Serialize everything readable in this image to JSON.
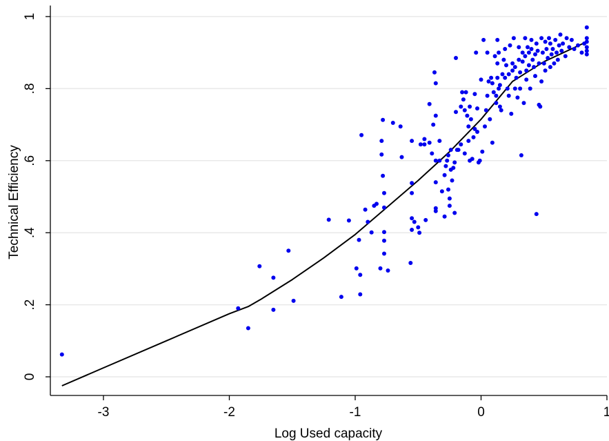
{
  "chart_data": {
    "type": "scatter",
    "title": "",
    "xlabel": "Log Used capacity",
    "ylabel": "Technical Efficiency",
    "xlim": [
      -3.35,
      1.0
    ],
    "ylim": [
      -0.05,
      1.0
    ],
    "xticks": [
      {
        "value": -3,
        "label": "-3"
      },
      {
        "value": -2,
        "label": "-2"
      },
      {
        "value": -1,
        "label": "-1"
      },
      {
        "value": 0,
        "label": "0"
      },
      {
        "value": 1,
        "label": "1"
      }
    ],
    "yticks": [
      {
        "value": 0,
        "label": "0"
      },
      {
        "value": 0.2,
        "label": ".2"
      },
      {
        "value": 0.4,
        "label": ".4"
      },
      {
        "value": 0.6,
        "label": ".6"
      },
      {
        "value": 0.8,
        "label": ".8"
      },
      {
        "value": 1,
        "label": "1"
      }
    ],
    "grid": "horizontal",
    "colors": {
      "points": "#0000ee",
      "line": "#000000",
      "grid": "#e8e8e8"
    },
    "points": [
      [
        -3.33,
        0.062
      ],
      [
        -1.93,
        0.19
      ],
      [
        -1.85,
        0.135
      ],
      [
        -1.76,
        0.307
      ],
      [
        -1.65,
        0.275
      ],
      [
        -1.65,
        0.186
      ],
      [
        -1.53,
        0.35
      ],
      [
        -1.49,
        0.211
      ],
      [
        -1.21,
        0.436
      ],
      [
        -1.11,
        0.222
      ],
      [
        -1.05,
        0.434
      ],
      [
        -0.99,
        0.301
      ],
      [
        -0.97,
        0.38
      ],
      [
        -0.96,
        0.283
      ],
      [
        -0.96,
        0.229
      ],
      [
        -0.95,
        0.671
      ],
      [
        -0.92,
        0.464
      ],
      [
        -0.9,
        0.43
      ],
      [
        -0.87,
        0.401
      ],
      [
        -0.85,
        0.475
      ],
      [
        -0.83,
        0.48
      ],
      [
        -0.8,
        0.301
      ],
      [
        -0.79,
        0.617
      ],
      [
        -0.79,
        0.655
      ],
      [
        -0.78,
        0.713
      ],
      [
        -0.78,
        0.558
      ],
      [
        -0.77,
        0.51
      ],
      [
        -0.77,
        0.47
      ],
      [
        -0.77,
        0.402
      ],
      [
        -0.77,
        0.378
      ],
      [
        -0.77,
        0.342
      ],
      [
        -0.74,
        0.295
      ],
      [
        -0.7,
        0.705
      ],
      [
        -0.64,
        0.695
      ],
      [
        -0.63,
        0.61
      ],
      [
        -0.56,
        0.316
      ],
      [
        -0.55,
        0.655
      ],
      [
        -0.55,
        0.538
      ],
      [
        -0.55,
        0.51
      ],
      [
        -0.55,
        0.44
      ],
      [
        -0.55,
        0.408
      ],
      [
        -0.53,
        0.43
      ],
      [
        -0.5,
        0.415
      ],
      [
        -0.49,
        0.4
      ],
      [
        -0.48,
        0.645
      ],
      [
        -0.45,
        0.66
      ],
      [
        -0.45,
        0.645
      ],
      [
        -0.44,
        0.435
      ],
      [
        -0.41,
        0.65
      ],
      [
        -0.41,
        0.757
      ],
      [
        -0.39,
        0.62
      ],
      [
        -0.38,
        0.7
      ],
      [
        -0.37,
        0.845
      ],
      [
        -0.36,
        0.815
      ],
      [
        -0.36,
        0.725
      ],
      [
        -0.36,
        0.6
      ],
      [
        -0.36,
        0.54
      ],
      [
        -0.36,
        0.468
      ],
      [
        -0.36,
        0.46
      ],
      [
        -0.33,
        0.655
      ],
      [
        -0.33,
        0.6
      ],
      [
        -0.31,
        0.515
      ],
      [
        -0.29,
        0.445
      ],
      [
        -0.29,
        0.56
      ],
      [
        -0.28,
        0.585
      ],
      [
        -0.27,
        0.6
      ],
      [
        -0.26,
        0.615
      ],
      [
        -0.26,
        0.52
      ],
      [
        -0.25,
        0.495
      ],
      [
        -0.25,
        0.475
      ],
      [
        -0.24,
        0.575
      ],
      [
        -0.24,
        0.63
      ],
      [
        -0.23,
        0.545
      ],
      [
        -0.22,
        0.58
      ],
      [
        -0.21,
        0.455
      ],
      [
        -0.21,
        0.595
      ],
      [
        -0.2,
        0.735
      ],
      [
        -0.2,
        0.885
      ],
      [
        -0.19,
        0.63
      ],
      [
        -0.18,
        0.63
      ],
      [
        -0.16,
        0.645
      ],
      [
        -0.16,
        0.75
      ],
      [
        -0.15,
        0.79
      ],
      [
        -0.14,
        0.77
      ],
      [
        -0.13,
        0.62
      ],
      [
        -0.13,
        0.74
      ],
      [
        -0.12,
        0.79
      ],
      [
        -0.11,
        0.725
      ],
      [
        -0.1,
        0.695
      ],
      [
        -0.1,
        0.655
      ],
      [
        -0.09,
        0.6
      ],
      [
        -0.09,
        0.75
      ],
      [
        -0.08,
        0.715
      ],
      [
        -0.07,
        0.605
      ],
      [
        -0.06,
        0.665
      ],
      [
        -0.05,
        0.688
      ],
      [
        -0.05,
        0.785
      ],
      [
        -0.04,
        0.9
      ],
      [
        -0.03,
        0.68
      ],
      [
        -0.03,
        0.745
      ],
      [
        -0.02,
        0.595
      ],
      [
        -0.01,
        0.6
      ],
      [
        0.0,
        0.825
      ],
      [
        0.01,
        0.625
      ],
      [
        0.02,
        0.935
      ],
      [
        0.03,
        0.695
      ],
      [
        0.04,
        0.74
      ],
      [
        0.05,
        0.78
      ],
      [
        0.05,
        0.9
      ],
      [
        0.06,
        0.82
      ],
      [
        0.07,
        0.715
      ],
      [
        0.08,
        0.83
      ],
      [
        0.09,
        0.65
      ],
      [
        0.09,
        0.815
      ],
      [
        0.1,
        0.79
      ],
      [
        0.11,
        0.89
      ],
      [
        0.12,
        0.76
      ],
      [
        0.12,
        0.78
      ],
      [
        0.13,
        0.87
      ],
      [
        0.13,
        0.935
      ],
      [
        0.13,
        0.83
      ],
      [
        0.14,
        0.8
      ],
      [
        0.14,
        0.9
      ],
      [
        0.15,
        0.81
      ],
      [
        0.15,
        0.75
      ],
      [
        0.16,
        0.74
      ],
      [
        0.17,
        0.84
      ],
      [
        0.18,
        0.88
      ],
      [
        0.19,
        0.91
      ],
      [
        0.19,
        0.83
      ],
      [
        0.2,
        0.865
      ],
      [
        0.21,
        0.8
      ],
      [
        0.22,
        0.84
      ],
      [
        0.22,
        0.78
      ],
      [
        0.23,
        0.92
      ],
      [
        0.24,
        0.73
      ],
      [
        0.25,
        0.87
      ],
      [
        0.25,
        0.85
      ],
      [
        0.26,
        0.94
      ],
      [
        0.27,
        0.86
      ],
      [
        0.27,
        0.8
      ],
      [
        0.28,
        0.83
      ],
      [
        0.29,
        0.775
      ],
      [
        0.3,
        0.88
      ],
      [
        0.3,
        0.915
      ],
      [
        0.31,
        0.845
      ],
      [
        0.31,
        0.8
      ],
      [
        0.32,
        0.615
      ],
      [
        0.33,
        0.9
      ],
      [
        0.33,
        0.875
      ],
      [
        0.34,
        0.76
      ],
      [
        0.35,
        0.94
      ],
      [
        0.35,
        0.89
      ],
      [
        0.36,
        0.85
      ],
      [
        0.36,
        0.825
      ],
      [
        0.37,
        0.915
      ],
      [
        0.38,
        0.9
      ],
      [
        0.38,
        0.865
      ],
      [
        0.39,
        0.8
      ],
      [
        0.4,
        0.935
      ],
      [
        0.4,
        0.91
      ],
      [
        0.41,
        0.88
      ],
      [
        0.42,
        0.86
      ],
      [
        0.43,
        0.895
      ],
      [
        0.43,
        0.835
      ],
      [
        0.44,
        0.925
      ],
      [
        0.44,
        0.452
      ],
      [
        0.45,
        0.905
      ],
      [
        0.46,
        0.87
      ],
      [
        0.46,
        0.755
      ],
      [
        0.47,
        0.75
      ],
      [
        0.48,
        0.94
      ],
      [
        0.48,
        0.82
      ],
      [
        0.49,
        0.9
      ],
      [
        0.5,
        0.87
      ],
      [
        0.51,
        0.93
      ],
      [
        0.51,
        0.85
      ],
      [
        0.52,
        0.91
      ],
      [
        0.53,
        0.885
      ],
      [
        0.54,
        0.94
      ],
      [
        0.55,
        0.86
      ],
      [
        0.55,
        0.925
      ],
      [
        0.56,
        0.895
      ],
      [
        0.57,
        0.91
      ],
      [
        0.58,
        0.87
      ],
      [
        0.59,
        0.935
      ],
      [
        0.6,
        0.9
      ],
      [
        0.61,
        0.88
      ],
      [
        0.62,
        0.92
      ],
      [
        0.63,
        0.95
      ],
      [
        0.64,
        0.905
      ],
      [
        0.65,
        0.925
      ],
      [
        0.67,
        0.89
      ],
      [
        0.68,
        0.94
      ],
      [
        0.7,
        0.915
      ],
      [
        0.72,
        0.935
      ],
      [
        0.74,
        0.91
      ],
      [
        0.77,
        0.92
      ],
      [
        0.8,
        0.9
      ],
      [
        0.82,
        0.925
      ],
      [
        0.84,
        0.97
      ],
      [
        0.84,
        0.94
      ],
      [
        0.84,
        0.93
      ],
      [
        0.84,
        0.915
      ],
      [
        0.84,
        0.905
      ],
      [
        0.84,
        0.895
      ]
    ],
    "line": [
      [
        -3.33,
        -0.025
      ],
      [
        -3.0,
        0.025
      ],
      [
        -2.5,
        0.1
      ],
      [
        -2.0,
        0.175
      ],
      [
        -1.85,
        0.195
      ],
      [
        -1.75,
        0.215
      ],
      [
        -1.5,
        0.27
      ],
      [
        -1.25,
        0.33
      ],
      [
        -1.0,
        0.395
      ],
      [
        -0.75,
        0.47
      ],
      [
        -0.5,
        0.545
      ],
      [
        -0.25,
        0.625
      ],
      [
        0.0,
        0.715
      ],
      [
        0.25,
        0.82
      ],
      [
        0.5,
        0.875
      ],
      [
        0.84,
        0.93
      ]
    ]
  }
}
